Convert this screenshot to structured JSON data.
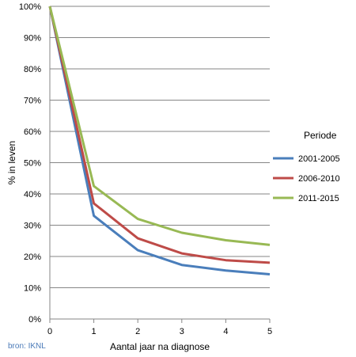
{
  "chart_data": {
    "type": "line",
    "x": [
      0,
      1,
      2,
      3,
      4,
      5
    ],
    "xlabel": "Aantal jaar na diagnose",
    "ylabel": "% in leven",
    "ylim": [
      0,
      100
    ],
    "yticks": [
      "0%",
      "10%",
      "20%",
      "30%",
      "40%",
      "50%",
      "60%",
      "70%",
      "80%",
      "90%",
      "100%"
    ],
    "xticks": [
      "0",
      "1",
      "2",
      "3",
      "4",
      "5"
    ],
    "grid": true,
    "legend_title": "Periode",
    "legend_position": "right",
    "series": [
      {
        "name": "2001-2005",
        "color": "#4a7ebb",
        "values": [
          100,
          33,
          22,
          17.3,
          15.5,
          14.3
        ]
      },
      {
        "name": "2006-2010",
        "color": "#be4b48",
        "values": [
          100,
          37,
          25.8,
          21,
          18.8,
          18
        ]
      },
      {
        "name": "2011-2015",
        "color": "#98b954",
        "values": [
          100,
          42.5,
          32,
          27.6,
          25.2,
          23.7
        ]
      }
    ]
  },
  "source_note": "bron: IKNL"
}
